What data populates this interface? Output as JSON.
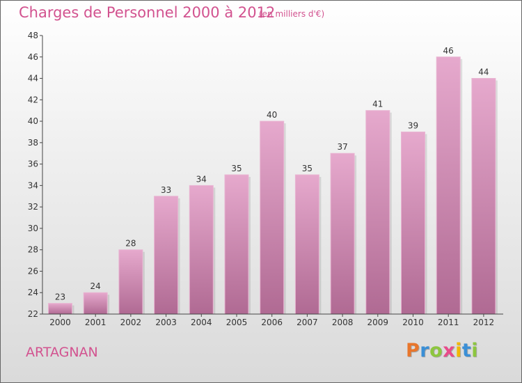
{
  "chart_data": {
    "type": "bar",
    "title": "Charges de Personnel 2000 à 2012",
    "subtitle": "(en milliers d'€)",
    "categories": [
      "2000",
      "2001",
      "2002",
      "2003",
      "2004",
      "2005",
      "2006",
      "2007",
      "2008",
      "2009",
      "2010",
      "2011",
      "2012"
    ],
    "values": [
      23,
      24,
      28,
      33,
      34,
      35,
      40,
      35,
      37,
      41,
      39,
      46,
      44
    ],
    "ylim": [
      22,
      48
    ],
    "yticks": [
      22,
      24,
      26,
      28,
      30,
      32,
      34,
      36,
      38,
      40,
      42,
      44,
      46,
      48
    ],
    "xlabel": "",
    "ylabel": "",
    "grid": false,
    "bar_color_top": "#e6a9cd",
    "bar_color_bottom": "#b06a93"
  },
  "commune": "ARTAGNAN",
  "logo": {
    "letters": [
      "P",
      "r",
      "o",
      "x",
      "i",
      "t",
      "i"
    ],
    "colors": [
      "#e8762c",
      "#3a8fd6",
      "#8dc63f",
      "#e84b8a",
      "#f2b705",
      "#3a8fd6",
      "#8dc63f"
    ]
  }
}
